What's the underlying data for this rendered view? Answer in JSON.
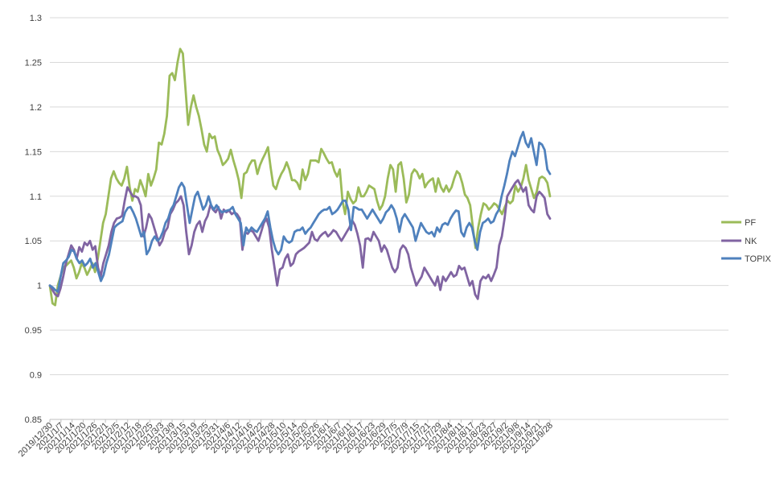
{
  "chart_data": {
    "type": "line",
    "title": "",
    "xlabel": "",
    "ylabel": "",
    "ylim": [
      0.85,
      1.3
    ],
    "yticks": [
      0.85,
      0.9,
      0.95,
      1,
      1.05,
      1.1,
      1.15,
      1.2,
      1.25,
      1.3
    ],
    "ytick_labels": [
      "0.85",
      "0.9",
      "0.95",
      "1",
      "1.05",
      "1.1",
      "1.15",
      "1.2",
      "1.25",
      "1.3"
    ],
    "grid": "horizontal",
    "legend_position": "right",
    "colors": {
      "PF": "#9BBB59",
      "NK": "#8064A2",
      "TOPIX": "#4F81BD"
    },
    "x_tick_labels": [
      "2019/12/30",
      "2021/1/7",
      "2021/1/14",
      "2021/1/20",
      "2021/1/26",
      "2021/2/1",
      "2021/2/5",
      "2021/2/12",
      "2021/2/18",
      "2021/2/25",
      "2021/3/3",
      "2021/3/9",
      "2021/3/15",
      "2021/3/19",
      "2021/3/25",
      "2021/3/31",
      "2021/4/6",
      "2021/4/12",
      "2021/4/16",
      "2021/4/22",
      "2021/4/28",
      "2021/5/10",
      "2021/5/14",
      "2021/5/20",
      "2021/5/26",
      "2021/6/1",
      "2021/6/7",
      "2021/6/11",
      "2021/6/17",
      "2021/6/23",
      "2021/6/29",
      "2021/7/5",
      "2021/7/9",
      "2021/7/15",
      "2021/7/21",
      "2021/7/29",
      "2021/8/4",
      "2021/8/11",
      "2021/8/17",
      "2021/8/23",
      "2021/8/27",
      "2021/9/2",
      "2021/9/8",
      "2021/9/14",
      "2021/9/21",
      "2021/9/28"
    ],
    "series": [
      {
        "name": "PF",
        "values": [
          1.0,
          0.98,
          0.978,
          1.0,
          1.01,
          1.02,
          1.022,
          1.025,
          1.028,
          1.02,
          1.008,
          1.015,
          1.025,
          1.02,
          1.012,
          1.018,
          1.025,
          1.015,
          1.03,
          1.05,
          1.07,
          1.08,
          1.1,
          1.12,
          1.128,
          1.12,
          1.115,
          1.112,
          1.12,
          1.133,
          1.11,
          1.095,
          1.108,
          1.105,
          1.118,
          1.11,
          1.1,
          1.125,
          1.112,
          1.12,
          1.13,
          1.16,
          1.158,
          1.17,
          1.19,
          1.235,
          1.238,
          1.23,
          1.25,
          1.265,
          1.26,
          1.22,
          1.18,
          1.2,
          1.213,
          1.2,
          1.19,
          1.175,
          1.158,
          1.15,
          1.17,
          1.165,
          1.167,
          1.152,
          1.145,
          1.135,
          1.138,
          1.142,
          1.152,
          1.14,
          1.13,
          1.118,
          1.098,
          1.125,
          1.127,
          1.135,
          1.14,
          1.14,
          1.125,
          1.135,
          1.142,
          1.148,
          1.155,
          1.132,
          1.112,
          1.108,
          1.118,
          1.125,
          1.13,
          1.138,
          1.13,
          1.118,
          1.118,
          1.115,
          1.108,
          1.13,
          1.118,
          1.125,
          1.14,
          1.14,
          1.14,
          1.138,
          1.153,
          1.148,
          1.142,
          1.137,
          1.138,
          1.128,
          1.122,
          1.13,
          1.095,
          1.08,
          1.105,
          1.097,
          1.092,
          1.095,
          1.11,
          1.1,
          1.1,
          1.105,
          1.112,
          1.11,
          1.108,
          1.095,
          1.085,
          1.09,
          1.1,
          1.12,
          1.135,
          1.13,
          1.105,
          1.135,
          1.138,
          1.12,
          1.093,
          1.102,
          1.125,
          1.13,
          1.127,
          1.12,
          1.125,
          1.11,
          1.115,
          1.118,
          1.12,
          1.105,
          1.12,
          1.11,
          1.105,
          1.112,
          1.105,
          1.11,
          1.12,
          1.128,
          1.125,
          1.115,
          1.102,
          1.098,
          1.09,
          1.065,
          1.042,
          1.065,
          1.08,
          1.092,
          1.09,
          1.085,
          1.088,
          1.092,
          1.09,
          1.085,
          1.08,
          1.088,
          1.095,
          1.092,
          1.095,
          1.112,
          1.105,
          1.11,
          1.12,
          1.135,
          1.118,
          1.108,
          1.098,
          1.105,
          1.12,
          1.122,
          1.12,
          1.115,
          1.1
        ]
      },
      {
        "name": "NK",
        "values": [
          1.0,
          0.995,
          0.99,
          0.988,
          0.997,
          1.01,
          1.025,
          1.035,
          1.045,
          1.04,
          1.03,
          1.043,
          1.038,
          1.048,
          1.045,
          1.05,
          1.04,
          1.044,
          1.02,
          1.01,
          1.025,
          1.035,
          1.045,
          1.06,
          1.07,
          1.075,
          1.076,
          1.078,
          1.095,
          1.11,
          1.105,
          1.1,
          1.1,
          1.098,
          1.09,
          1.055,
          1.065,
          1.08,
          1.075,
          1.065,
          1.055,
          1.045,
          1.05,
          1.06,
          1.065,
          1.08,
          1.085,
          1.092,
          1.095,
          1.1,
          1.09,
          1.06,
          1.035,
          1.045,
          1.06,
          1.068,
          1.072,
          1.06,
          1.072,
          1.078,
          1.09,
          1.085,
          1.082,
          1.088,
          1.075,
          1.085,
          1.082,
          1.084,
          1.08,
          1.082,
          1.08,
          1.075,
          1.04,
          1.06,
          1.058,
          1.062,
          1.06,
          1.055,
          1.05,
          1.06,
          1.07,
          1.075,
          1.065,
          1.04,
          1.02,
          1.0,
          1.018,
          1.02,
          1.03,
          1.035,
          1.022,
          1.025,
          1.035,
          1.038,
          1.04,
          1.042,
          1.045,
          1.048,
          1.06,
          1.052,
          1.05,
          1.055,
          1.058,
          1.06,
          1.055,
          1.058,
          1.062,
          1.06,
          1.055,
          1.05,
          1.055,
          1.06,
          1.065,
          1.073,
          1.068,
          1.058,
          1.045,
          1.02,
          1.052,
          1.053,
          1.05,
          1.06,
          1.055,
          1.05,
          1.038,
          1.045,
          1.04,
          1.03,
          1.02,
          1.015,
          1.02,
          1.04,
          1.045,
          1.042,
          1.035,
          1.02,
          1.01,
          1.0,
          1.005,
          1.01,
          1.02,
          1.015,
          1.01,
          1.005,
          1.0,
          1.01,
          0.995,
          1.01,
          1.005,
          1.01,
          1.015,
          1.01,
          1.012,
          1.022,
          1.018,
          1.02,
          1.01,
          1.0,
          1.005,
          0.99,
          0.985,
          1.005,
          1.01,
          1.008,
          1.012,
          1.005,
          1.012,
          1.02,
          1.045,
          1.055,
          1.075,
          1.1,
          1.105,
          1.11,
          1.115,
          1.118,
          1.112,
          1.105,
          1.11,
          1.09,
          1.085,
          1.082,
          1.1,
          1.105,
          1.102,
          1.098,
          1.08,
          1.075
        ]
      },
      {
        "name": "TOPIX",
        "values": [
          1.0,
          0.998,
          0.995,
          0.993,
          1.01,
          1.025,
          1.028,
          1.032,
          1.04,
          1.038,
          1.03,
          1.025,
          1.028,
          1.022,
          1.025,
          1.03,
          1.02,
          1.025,
          1.015,
          1.005,
          1.012,
          1.025,
          1.035,
          1.05,
          1.065,
          1.068,
          1.07,
          1.072,
          1.082,
          1.087,
          1.088,
          1.082,
          1.075,
          1.065,
          1.055,
          1.06,
          1.035,
          1.04,
          1.05,
          1.055,
          1.05,
          1.053,
          1.06,
          1.07,
          1.075,
          1.085,
          1.09,
          1.1,
          1.11,
          1.115,
          1.11,
          1.09,
          1.07,
          1.085,
          1.1,
          1.105,
          1.095,
          1.085,
          1.09,
          1.1,
          1.09,
          1.085,
          1.09,
          1.085,
          1.082,
          1.083,
          1.084,
          1.085,
          1.088,
          1.08,
          1.075,
          1.07,
          1.045,
          1.065,
          1.06,
          1.065,
          1.062,
          1.06,
          1.065,
          1.07,
          1.075,
          1.083,
          1.065,
          1.05,
          1.04,
          1.035,
          1.04,
          1.055,
          1.05,
          1.048,
          1.05,
          1.06,
          1.062,
          1.062,
          1.065,
          1.058,
          1.062,
          1.065,
          1.07,
          1.075,
          1.08,
          1.083,
          1.085,
          1.085,
          1.088,
          1.08,
          1.082,
          1.085,
          1.09,
          1.095,
          1.095,
          1.085,
          1.062,
          1.088,
          1.087,
          1.085,
          1.085,
          1.08,
          1.075,
          1.08,
          1.085,
          1.08,
          1.075,
          1.07,
          1.075,
          1.082,
          1.085,
          1.09,
          1.085,
          1.075,
          1.06,
          1.075,
          1.08,
          1.075,
          1.07,
          1.065,
          1.05,
          1.06,
          1.07,
          1.065,
          1.06,
          1.058,
          1.06,
          1.055,
          1.065,
          1.06,
          1.068,
          1.07,
          1.068,
          1.075,
          1.08,
          1.084,
          1.083,
          1.06,
          1.055,
          1.065,
          1.07,
          1.065,
          1.05,
          1.04,
          1.06,
          1.07,
          1.072,
          1.075,
          1.07,
          1.072,
          1.08,
          1.085,
          1.1,
          1.112,
          1.125,
          1.14,
          1.15,
          1.145,
          1.155,
          1.165,
          1.172,
          1.16,
          1.155,
          1.165,
          1.15,
          1.135,
          1.16,
          1.158,
          1.152,
          1.13,
          1.125
        ]
      }
    ]
  }
}
